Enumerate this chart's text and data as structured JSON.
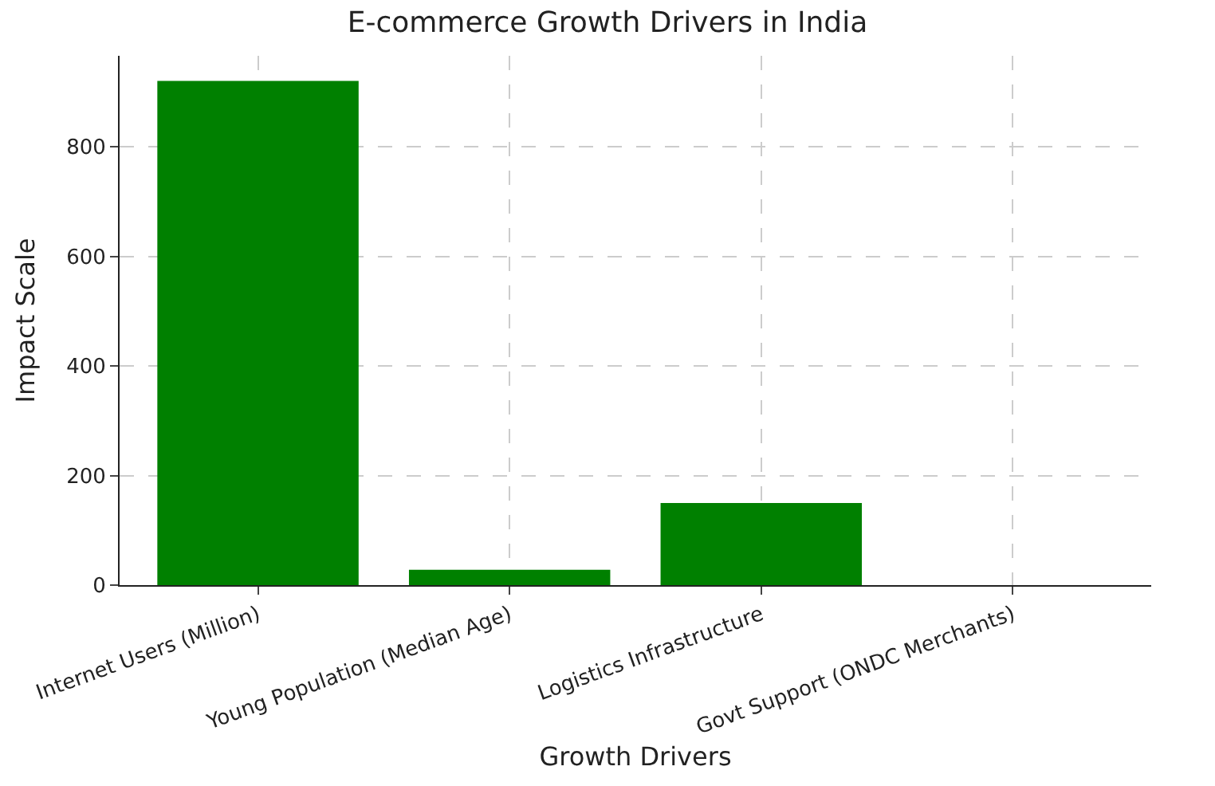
{
  "chart_data": {
    "type": "bar",
    "title": "E-commerce Growth Drivers in India",
    "xlabel": "Growth Drivers",
    "ylabel": "Impact Scale",
    "categories": [
      "Internet Users (Million)",
      "Young Population (Median Age)",
      "Logistics Infrastructure",
      "Govt Support (ONDC Merchants)"
    ],
    "values": [
      920,
      28,
      150,
      0
    ],
    "color": "#008000",
    "ylim": [
      0,
      966
    ],
    "yticks": [
      0,
      200,
      400,
      600,
      800
    ],
    "grid": true,
    "line_style": "dashed"
  }
}
